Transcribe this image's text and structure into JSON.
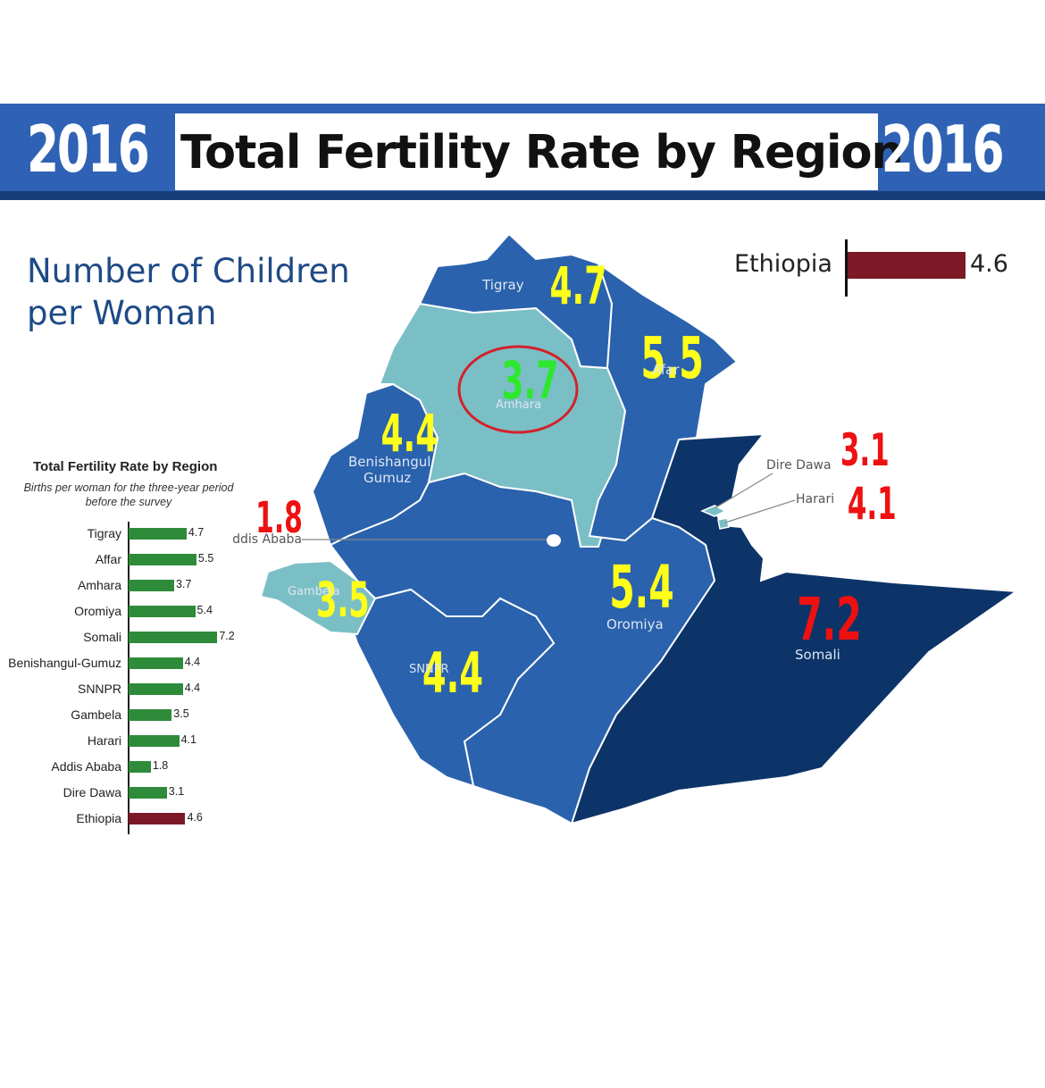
{
  "header": {
    "year_left": "2016",
    "year_right": "2016",
    "title": "Total Fertility Rate by Region"
  },
  "subtitle": [
    "Number of Children",
    "per Woman"
  ],
  "national": {
    "label": "Ethiopia",
    "value": "4.6",
    "value_num": 4.6,
    "color": "#7b1a26"
  },
  "colors": {
    "banner": "#2f62b4",
    "region_mid": "#2a62ad",
    "region_light": "#7bbfc6",
    "region_dark": "#0c3468",
    "label_yellow": "#ffff1a",
    "label_green": "#2ee82e",
    "label_red": "#ee1111",
    "bar_green": "#2e8b3a",
    "highlight_circle": "#d2222a"
  },
  "map": {
    "regions": [
      {
        "id": "tigray",
        "name": "Tigray",
        "value": "4.7",
        "label_color": "yellow"
      },
      {
        "id": "afar",
        "name": "Afar",
        "value": "5.5",
        "label_color": "yellow"
      },
      {
        "id": "amhara",
        "name": "Amhara",
        "value": "3.7",
        "label_color": "green",
        "highlighted": true
      },
      {
        "id": "benishangul",
        "name": "Benishangul",
        "name2": "Gumuz",
        "value": "4.4",
        "label_color": "yellow"
      },
      {
        "id": "dire_dawa",
        "name": "Dire Dawa",
        "value": "3.1",
        "label_color": "red"
      },
      {
        "id": "harari",
        "name": "Harari",
        "value": "4.1",
        "label_color": "red"
      },
      {
        "id": "addis_ababa",
        "name": "Addis Ababa",
        "value": "1.8",
        "label_color": "red"
      },
      {
        "id": "gambela",
        "name": "Gambela",
        "value": "3.5",
        "label_color": "yellow"
      },
      {
        "id": "oromiya",
        "name": "Oromiya",
        "value": "5.4",
        "label_color": "yellow"
      },
      {
        "id": "somali",
        "name": "Somali",
        "value": "7.2",
        "label_color": "red"
      },
      {
        "id": "snnpr",
        "name": "SNNPR",
        "value": "4.4",
        "label_color": "yellow"
      }
    ]
  },
  "chart_data": {
    "type": "bar",
    "title": "Total Fertility Rate by Region",
    "subtitle": "Births per woman for the three-year period before the survey",
    "orientation": "horizontal",
    "categories": [
      "Tigray",
      "Affar",
      "Amhara",
      "Oromiya",
      "Somali",
      "Benishangul-Gumuz",
      "SNNPR",
      "Gambela",
      "Harari",
      "Addis Ababa",
      "Dire Dawa",
      "Ethiopia"
    ],
    "values": [
      4.7,
      5.5,
      3.7,
      5.4,
      7.2,
      4.4,
      4.4,
      3.5,
      4.1,
      1.8,
      3.1,
      4.6
    ],
    "value_labels": [
      "4.7",
      "5.5",
      "3.7",
      "5.4",
      "7.2",
      "4.4",
      "4.4",
      "3.5",
      "4.1",
      "1.8",
      "3.1",
      "4.6"
    ],
    "highlight_category": "Ethiopia",
    "colors": {
      "default": "#2e8b3a",
      "highlight": "#7b1a26"
    },
    "xlim": [
      0,
      7.2
    ],
    "grid": false
  }
}
